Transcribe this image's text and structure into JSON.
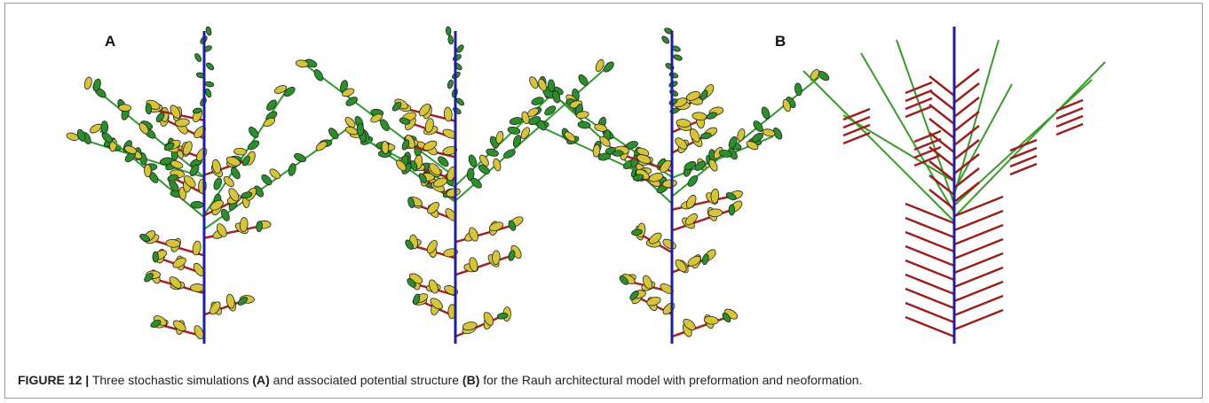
{
  "panels": {
    "a": "A",
    "b": "B"
  },
  "caption": {
    "label": "FIGURE 12 |",
    "text_1": "Three stochastic simulations",
    "ref_a": "(A)",
    "text_2": "and associated potential structure",
    "ref_b": "(B)",
    "text_3": "for the Rauh architectural model with preformation and neoformation."
  }
}
